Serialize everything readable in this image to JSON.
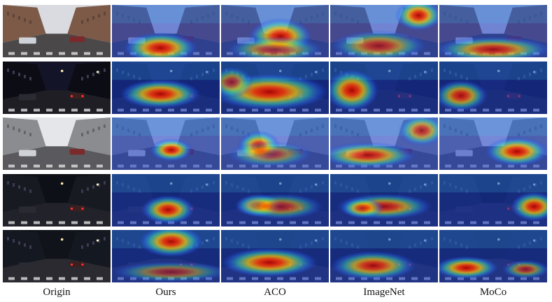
{
  "columns": [
    {
      "key": "origin",
      "label": "Origin"
    },
    {
      "key": "ours",
      "label": "Ours"
    },
    {
      "key": "aco",
      "label": "ACO"
    },
    {
      "key": "imagenet",
      "label": "ImageNet"
    },
    {
      "key": "moco",
      "label": "MoCo"
    }
  ],
  "rows": [
    {
      "scene": "day-street-buildings",
      "sky": "#d9dbe0",
      "ground": "#4a4848",
      "building": "#7d5a48",
      "light": "day",
      "heat": {
        "ours": [
          [
            0.45,
            0.82,
            0.35,
            0.3,
            1.0
          ]
        ],
        "aco": [
          [
            0.55,
            0.6,
            0.3,
            0.35,
            1.0
          ],
          [
            0.5,
            0.85,
            0.45,
            0.25,
            0.7
          ]
        ],
        "imagenet": [
          [
            0.82,
            0.2,
            0.22,
            0.3,
            1.0
          ],
          [
            0.45,
            0.78,
            0.45,
            0.3,
            0.75
          ]
        ],
        "moco": [
          [
            0.5,
            0.85,
            0.55,
            0.25,
            0.85
          ]
        ]
      }
    },
    {
      "scene": "night-street-billboard",
      "sky": "#141428",
      "ground": "#1e1e24",
      "building": "#0c0c14",
      "light": "night",
      "heat": {
        "ours": [
          [
            0.45,
            0.62,
            0.38,
            0.28,
            1.0
          ]
        ],
        "aco": [
          [
            0.45,
            0.58,
            0.55,
            0.35,
            1.0
          ],
          [
            0.1,
            0.4,
            0.2,
            0.3,
            0.7
          ]
        ],
        "imagenet": [
          [
            0.2,
            0.55,
            0.25,
            0.4,
            1.0
          ]
        ],
        "moco": [
          [
            0.2,
            0.65,
            0.25,
            0.3,
            0.9
          ]
        ]
      }
    },
    {
      "scene": "day-street-cars",
      "sky": "#e4e6ea",
      "ground": "#5a5a5e",
      "building": "#8a8c90",
      "light": "day",
      "heat": {
        "ours": [
          [
            0.55,
            0.62,
            0.2,
            0.22,
            1.0
          ]
        ],
        "aco": [
          [
            0.35,
            0.55,
            0.2,
            0.3,
            1.0
          ],
          [
            0.45,
            0.7,
            0.4,
            0.25,
            0.6
          ]
        ],
        "imagenet": [
          [
            0.35,
            0.72,
            0.45,
            0.25,
            0.9
          ],
          [
            0.85,
            0.25,
            0.22,
            0.3,
            0.8
          ]
        ],
        "moco": [
          [
            0.72,
            0.65,
            0.3,
            0.28,
            1.0
          ]
        ]
      }
    },
    {
      "scene": "night-intersection-lights",
      "sky": "#0e1018",
      "ground": "#22222a",
      "building": "#181a22",
      "light": "night",
      "heat": {
        "ours": [
          [
            0.52,
            0.68,
            0.25,
            0.28,
            1.0
          ]
        ],
        "aco": [
          [
            0.35,
            0.6,
            0.22,
            0.22,
            1.0
          ],
          [
            0.55,
            0.62,
            0.4,
            0.25,
            0.7
          ]
        ],
        "imagenet": [
          [
            0.5,
            0.62,
            0.45,
            0.25,
            0.85
          ],
          [
            0.3,
            0.65,
            0.2,
            0.2,
            0.8
          ]
        ],
        "moco": [
          [
            0.88,
            0.62,
            0.22,
            0.28,
            1.0
          ]
        ]
      }
    },
    {
      "scene": "night-crosswalk",
      "sky": "#10141a",
      "ground": "#2a2a30",
      "building": "#141820",
      "light": "night",
      "heat": {
        "ours": [
          [
            0.55,
            0.22,
            0.3,
            0.3,
            1.0
          ],
          [
            0.55,
            0.8,
            0.55,
            0.2,
            0.6
          ]
        ],
        "aco": [
          [
            0.45,
            0.62,
            0.45,
            0.28,
            1.0
          ]
        ],
        "imagenet": [
          [
            0.4,
            0.68,
            0.4,
            0.28,
            0.9
          ]
        ],
        "moco": [
          [
            0.25,
            0.72,
            0.3,
            0.22,
            1.0
          ],
          [
            0.8,
            0.75,
            0.22,
            0.18,
            0.7
          ]
        ]
      }
    }
  ]
}
